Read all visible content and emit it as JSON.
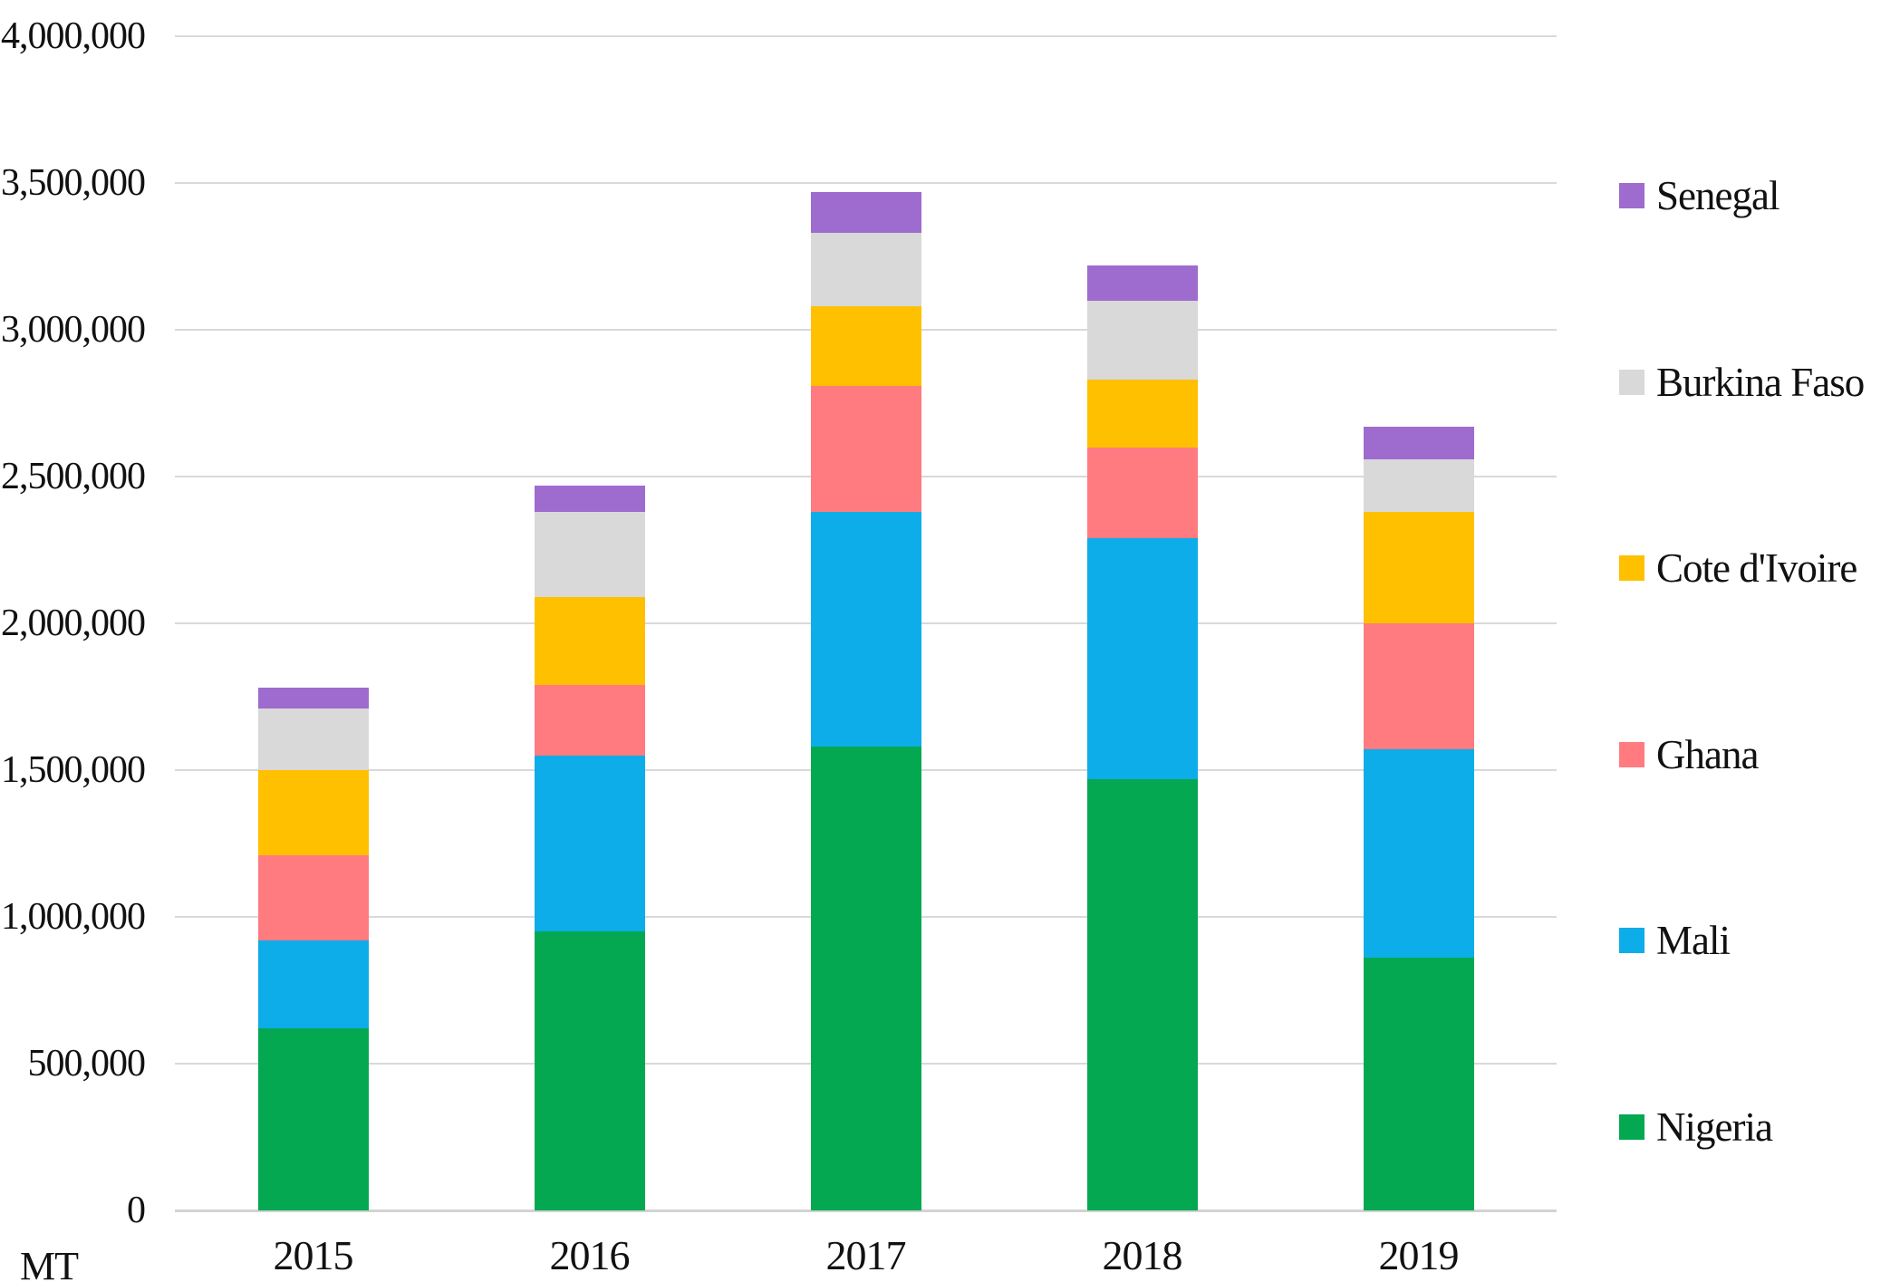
{
  "chart": {
    "unit_label": "MT",
    "y_tick_labels_top_to_bottom": [
      "4,000,000",
      "3,500,000",
      "3,000,000",
      "2,500,000",
      "2,000,000",
      "1,500,000",
      "1,000,000",
      "500,000",
      "0"
    ],
    "gridline_color": "#d9d9d9",
    "background_color": "#ffffff",
    "text_color": "#111111"
  },
  "chart_data": {
    "type": "bar",
    "stacked": true,
    "title": "",
    "xlabel": "",
    "ylabel": "MT",
    "ylim": [
      0,
      4000000
    ],
    "y_step": 500000,
    "grid": true,
    "legend_position": "right",
    "categories": [
      "2015",
      "2016",
      "2017",
      "2018",
      "2019"
    ],
    "series": [
      {
        "name": "Nigeria",
        "color": "#04a851",
        "values": [
          620000,
          950000,
          1580000,
          1470000,
          860000
        ]
      },
      {
        "name": "Mali",
        "color": "#0cade9",
        "values": [
          300000,
          600000,
          800000,
          820000,
          710000
        ]
      },
      {
        "name": "Ghana",
        "color": "#ff7b80",
        "values": [
          290000,
          240000,
          430000,
          310000,
          430000
        ]
      },
      {
        "name": "Cote d'Ivoire",
        "color": "#ffc000",
        "values": [
          290000,
          300000,
          270000,
          230000,
          380000
        ]
      },
      {
        "name": "Burkina Faso",
        "color": "#d9d9d9",
        "values": [
          210000,
          290000,
          250000,
          270000,
          180000
        ]
      },
      {
        "name": "Senegal",
        "color": "#9e6bce",
        "values": [
          70000,
          90000,
          140000,
          120000,
          110000
        ]
      }
    ],
    "totals": [
      1780000,
      2470000,
      3470000,
      3220000,
      2670000
    ],
    "legend_order_top_to_bottom": [
      "Senegal",
      "Burkina Faso",
      "Cote d'Ivoire",
      "Ghana",
      "Mali",
      "Nigeria"
    ]
  }
}
